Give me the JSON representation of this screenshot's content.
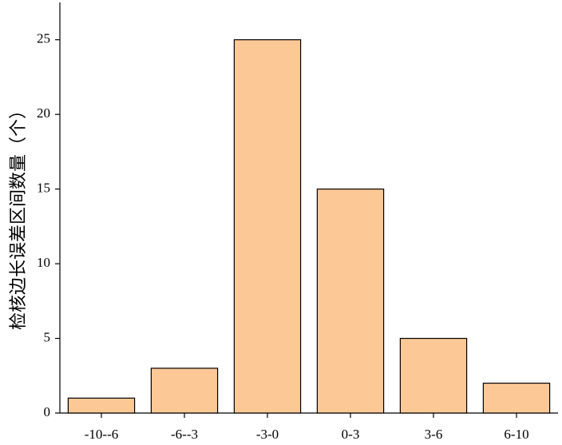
{
  "chart_data": {
    "type": "bar",
    "ylabel": "检核边长误差区间数量（个）",
    "categories": [
      "-10--6",
      "-6--3",
      "-3-0",
      "0-3",
      "3-6",
      "6-10"
    ],
    "values": [
      1,
      3,
      25,
      15,
      5,
      2
    ],
    "color": "#fcc896",
    "ylim": [
      0,
      27.5
    ],
    "yticks": [
      0,
      5,
      10,
      15,
      20,
      25
    ]
  }
}
